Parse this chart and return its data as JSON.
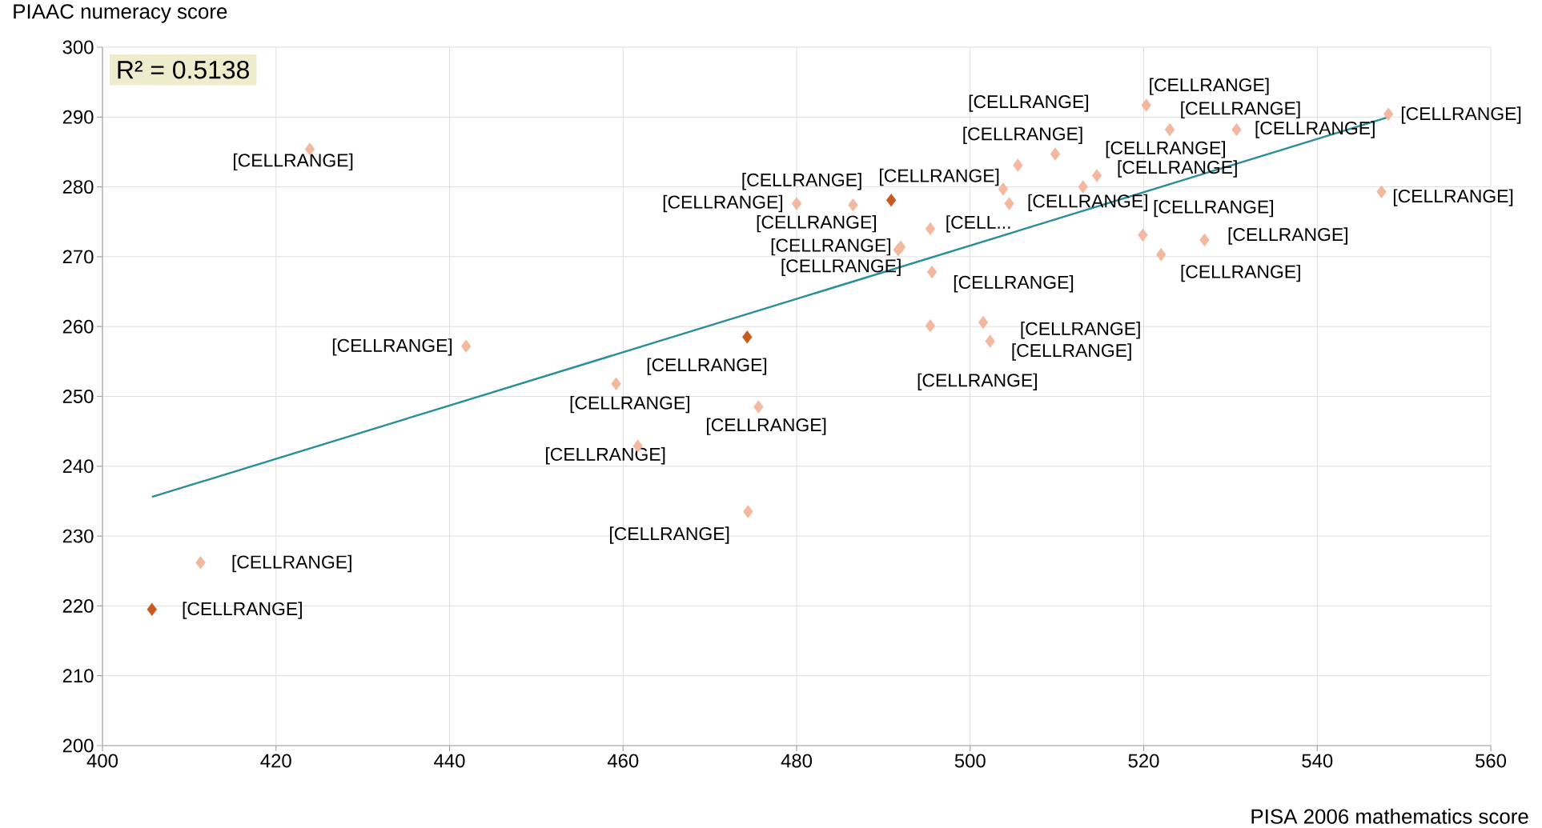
{
  "chart_data": {
    "type": "scatter",
    "xlabel": "PISA 2006 mathematics score",
    "ylabel": "PIAAC numeracy score",
    "xlim": [
      400,
      560
    ],
    "ylim": [
      200,
      300
    ],
    "xticks": [
      400,
      420,
      440,
      460,
      480,
      500,
      520,
      540,
      560
    ],
    "yticks": [
      200,
      210,
      220,
      230,
      240,
      250,
      260,
      270,
      280,
      290,
      300
    ],
    "grid": true,
    "marker": "diamond",
    "annotations": [
      "R² = 0.5138"
    ],
    "series": [
      {
        "color": "#f2b8a0",
        "x": [
          423.9,
          441.9,
          459.2,
          461.7,
          474.4,
          475.6,
          411.3,
          480.0,
          486.5,
          492.0,
          495.4,
          495.6,
          495.4,
          501.5,
          502.3,
          503.8,
          504.5,
          505.5,
          509.8,
          513.0,
          514.6,
          520.3,
          523.0,
          530.7,
          548.2,
          547.4,
          519.9,
          522.0,
          527.0,
          491.7
        ],
        "values": [
          285.4,
          257.2,
          251.8,
          242.9,
          233.5,
          248.5,
          226.2,
          277.6,
          277.4,
          271.4,
          274.0,
          267.8,
          260.1,
          260.6,
          257.9,
          279.7,
          277.6,
          283.1,
          284.7,
          280.0,
          281.6,
          291.7,
          288.2,
          288.2,
          290.4,
          279.3,
          273.1,
          270.3,
          272.4,
          271.0
        ],
        "value_labels": [
          "[CELLRANGE]",
          "[CELLRANGE]",
          "[CELLRANGE]",
          "[CELLRANGE]",
          "[CELLRANGE]",
          "[CELLRANGE]",
          "[CELLRANGE]",
          "[CELLRANGE]",
          "[CELLRANGE]",
          "[CELLRANGE]",
          "[CELL...",
          "[CELLRANGE]",
          "[CELLRANGE]",
          "[CELLRANGE]",
          "[CELLRANGE]",
          "[CELLRANGE]",
          "[CELLRANGE]",
          "[CELLRANGE]",
          "[CELLRANGE]",
          "[CELLRANGE]",
          "[CELLRANGE]",
          "[CELLRANGE]",
          "[CELLRANGE]",
          "[CELLRANGE]",
          "[CELLRANGE]",
          "[CELLRANGE]",
          "[CELLRANGE]",
          "[CELLRANGE]",
          "[CELLRANGE]",
          "[CELLRANGE]"
        ]
      },
      {
        "color": "#c8591f",
        "x": [
          490.9,
          474.3,
          405.7
        ],
        "values": [
          278.1,
          258.5,
          219.5
        ],
        "value_labels": [
          "[CELLRANGE]",
          "[CELLRANGE]",
          "[CELLRANGE]"
        ]
      },
      {
        "type": "line",
        "marker": "none",
        "color": "#2a8f96",
        "x": [
          405.7,
          548.2
        ],
        "values": [
          235.6,
          290.0
        ]
      }
    ]
  }
}
